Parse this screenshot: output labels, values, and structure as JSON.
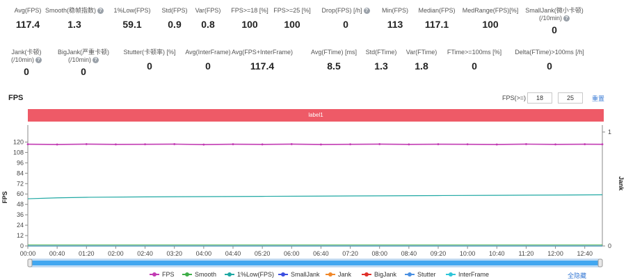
{
  "metrics_row1": [
    {
      "label": "Avg(FPS)",
      "value": "117.4",
      "help": false
    },
    {
      "label": "Smooth(稳帧指数)",
      "value": "1.3",
      "help": true
    },
    {
      "label": "1%Low(FPS)",
      "value": "59.1",
      "help": false
    },
    {
      "label": "Std(FPS)",
      "value": "0.9",
      "help": false
    },
    {
      "label": "Var(FPS)",
      "value": "0.8",
      "help": false
    },
    {
      "label": "FPS>=18 [%]",
      "value": "100",
      "help": false
    },
    {
      "label": "FPS>=25 [%]",
      "value": "100",
      "help": false
    },
    {
      "label": "Drop(FPS) [/h]",
      "value": "0",
      "help": true
    },
    {
      "label": "Min(FPS)",
      "value": "113",
      "help": false
    },
    {
      "label": "Median(FPS)",
      "value": "117.1",
      "help": false
    },
    {
      "label": "MedRange(FPS)[%]",
      "value": "100",
      "help": false
    },
    {
      "label": "SmallJank(微小卡顿)",
      "label2": "(/10min)",
      "value": "0",
      "help": true
    }
  ],
  "metrics_row2": [
    {
      "label": "Jank(卡顿)",
      "label2": "(/10min)",
      "value": "0",
      "help": true
    },
    {
      "label": "BigJank(严重卡顿)",
      "label2": "(/10min)",
      "value": "0",
      "help": true
    },
    {
      "label": "Stutter(卡顿率) [%]",
      "value": "0",
      "help": false
    },
    {
      "label": "Avg(InterFrame)",
      "value": "0",
      "help": false
    },
    {
      "label": "Avg(FPS+InterFrame)",
      "value": "117.4",
      "help": false
    },
    {
      "label": "Avg(FTime) [ms]",
      "value": "8.5",
      "help": false
    },
    {
      "label": "Std(FTime)",
      "value": "1.3",
      "help": false
    },
    {
      "label": "Var(FTime)",
      "value": "1.8",
      "help": false
    },
    {
      "label": "FTime>=100ms [%]",
      "value": "0",
      "help": false
    },
    {
      "label": "Delta(FTime)>100ms [/h]",
      "value": "0",
      "help": false
    }
  ],
  "chart_header": {
    "title": "FPS",
    "threshold_label": "FPS(>=)",
    "threshold_1": "18",
    "threshold_2": "25",
    "reset_label": "重置"
  },
  "label_bar": "label1",
  "legend_hide_all": "全隐藏",
  "colors": {
    "fps": "#c23bb3",
    "smooth": "#3fae49",
    "low1": "#1fa8a3",
    "smalljank": "#3b4fe0",
    "jank": "#f0882a",
    "bigjank": "#e0302a",
    "stutter": "#4a90e2",
    "interframe": "#2ec5d9",
    "labelbar": "#ee5a67",
    "slider": "#42a7f0"
  },
  "chart_data": {
    "type": "line",
    "title": "FPS",
    "xlabel": "",
    "ylabel": "FPS",
    "y2label": "Jank",
    "ylim": [
      0,
      130
    ],
    "y_ticks": [
      0,
      12,
      24,
      36,
      48,
      60,
      72,
      84,
      96,
      108,
      120
    ],
    "y2lim": [
      0,
      1
    ],
    "y2_ticks": [
      0,
      1
    ],
    "x_ticks": [
      "00:00",
      "00:40",
      "01:20",
      "02:00",
      "02:40",
      "03:20",
      "04:00",
      "04:40",
      "05:20",
      "06:00",
      "06:40",
      "07:20",
      "08:00",
      "08:40",
      "09:20",
      "10:00",
      "10:40",
      "11:20",
      "12:00",
      "12:40"
    ],
    "x_range_seconds": [
      0,
      784
    ],
    "series": [
      {
        "name": "FPS",
        "x": [
          0,
          40,
          80,
          120,
          160,
          200,
          240,
          280,
          320,
          360,
          400,
          440,
          480,
          520,
          560,
          600,
          640,
          680,
          720,
          760,
          784
        ],
        "values": [
          117.5,
          117.2,
          117.6,
          117.3,
          117.4,
          117.6,
          117.1,
          117.5,
          117.3,
          117.6,
          117.2,
          117.4,
          117.6,
          117.3,
          117.5,
          117.4,
          117.2,
          117.6,
          117.3,
          117.5,
          117.4
        ]
      },
      {
        "name": "Smooth",
        "x": [
          0,
          784
        ],
        "values": [
          1.3,
          1.3
        ]
      },
      {
        "name": "1%Low(FPS)",
        "x": [
          0,
          40,
          80,
          160,
          240,
          320,
          400,
          480,
          560,
          640,
          720,
          784
        ],
        "values": [
          54.5,
          55.6,
          56.2,
          56.7,
          57.0,
          57.3,
          57.6,
          57.9,
          58.2,
          58.5,
          58.8,
          59.1
        ]
      },
      {
        "name": "SmallJank",
        "x": [
          0,
          784
        ],
        "values": [
          0,
          0
        ]
      },
      {
        "name": "Jank",
        "x": [
          0,
          784
        ],
        "values": [
          0,
          0
        ]
      },
      {
        "name": "BigJank",
        "x": [
          0,
          784
        ],
        "values": [
          0,
          0
        ]
      },
      {
        "name": "Stutter",
        "x": [
          0,
          784
        ],
        "values": [
          0,
          0
        ]
      },
      {
        "name": "InterFrame",
        "x": [
          0,
          784
        ],
        "values": [
          0,
          0
        ]
      }
    ],
    "legend_position": "bottom",
    "grid": false
  }
}
